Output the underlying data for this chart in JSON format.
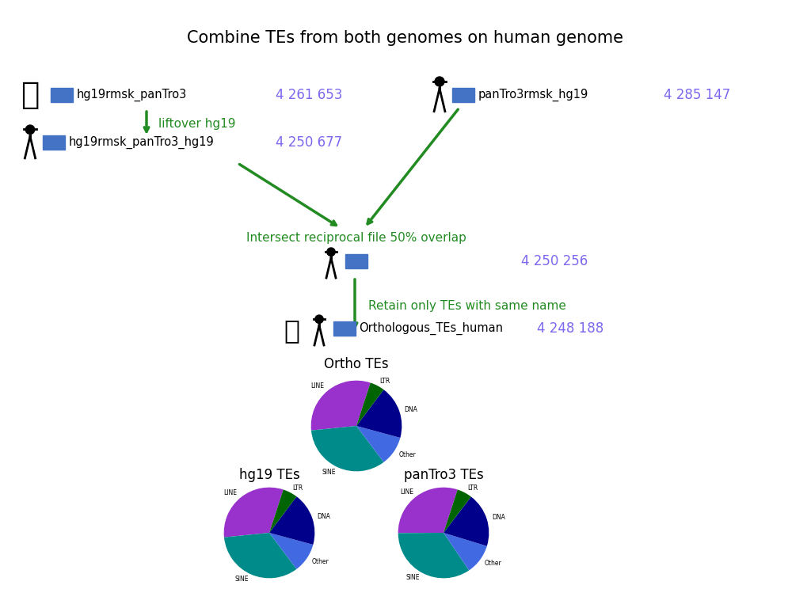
{
  "title": "Combine TEs from both genomes on human genome",
  "title_fontsize": 15,
  "background_color": "#ffffff",
  "row1_left_label": "hg19rmsk_panTro3",
  "row1_left_count": "4 261 653",
  "row1_right_label": "panTro3rmsk_hg19",
  "row1_right_count": "4 285 147",
  "row2_label": "hg19rmsk_panTro3_hg19",
  "row2_count": "4 250 677",
  "liftover_label": "liftover hg19",
  "intersect_label": "Intersect reciprocal file 50% overlap",
  "intersect_count": "4 250 256",
  "retain_label": "Retain only TEs with same name",
  "ortho_label": "Orthologous_TEs_human",
  "ortho_count": "4 248 188",
  "count_color": "#7B68EE",
  "green_color": "#228B22",
  "box_color": "#4472C4",
  "text_color": "#000000",
  "pie_colors_line": "#9932CC",
  "pie_colors_sine": "#008B8B",
  "pie_colors_ltr": "#006400",
  "pie_colors_dna": "#00008B",
  "pie_colors_other": "#4169E1",
  "pie_values_ortho": [
    30,
    32,
    10,
    18,
    5
  ],
  "pie_values_hg19": [
    30,
    32,
    10,
    18,
    5
  ],
  "pie_values_pantro3": [
    28,
    32,
    10,
    18,
    5
  ],
  "ortho_title": "Ortho TEs",
  "hg19_title": "hg19 TEs",
  "pantro3_title": "panTro3 TEs"
}
